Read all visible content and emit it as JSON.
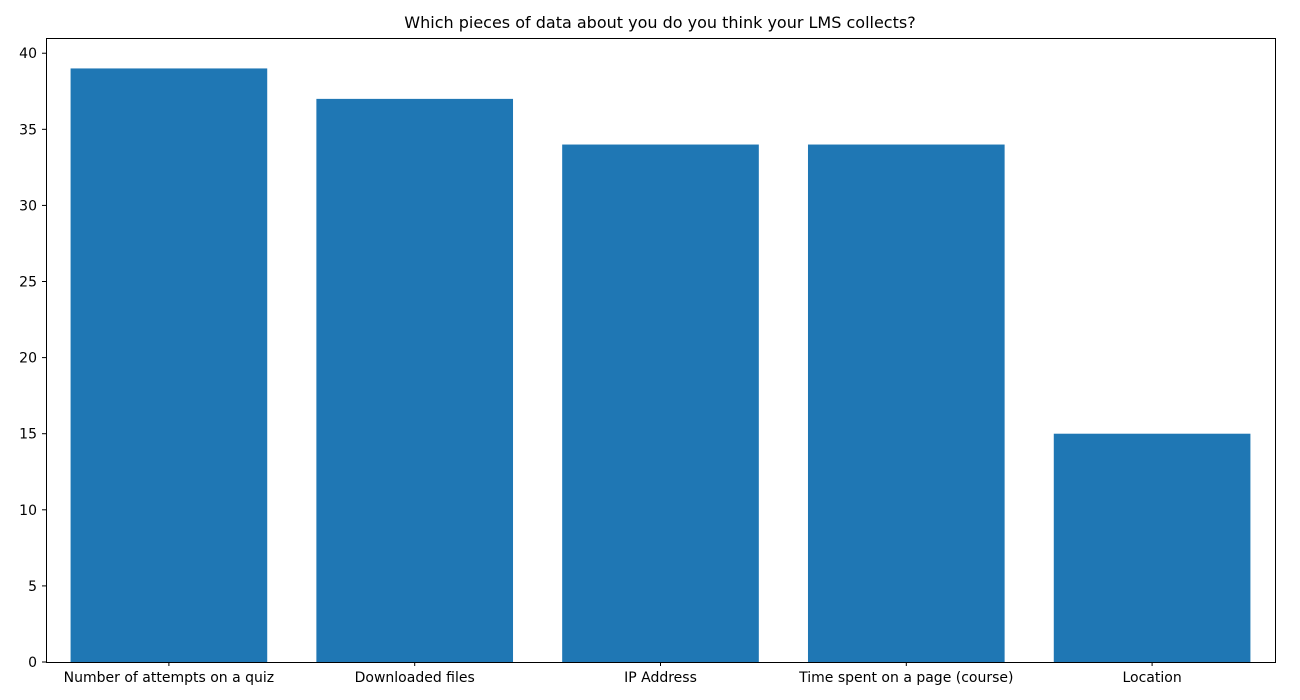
{
  "chart_data": {
    "type": "bar",
    "title": "Which pieces of data about you do you think your LMS collects?",
    "xlabel": "",
    "ylabel": "",
    "categories": [
      "Number of attempts on a quiz",
      "Downloaded files",
      "IP Address",
      "Time spent on a page (course)",
      "Location"
    ],
    "values": [
      39,
      37,
      34,
      34,
      15
    ],
    "ylim": [
      0,
      41
    ],
    "yticks": [
      0,
      5,
      10,
      15,
      20,
      25,
      30,
      35,
      40
    ],
    "grid": false,
    "bar_color": "#1f77b4"
  }
}
